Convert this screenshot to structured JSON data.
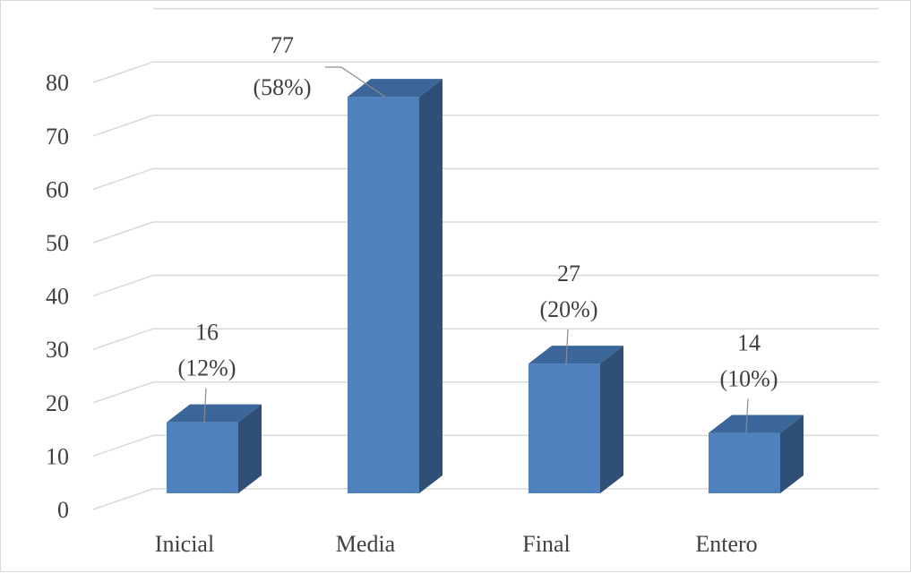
{
  "chart_data": {
    "type": "bar",
    "style": "3d-column",
    "categories": [
      "Inicial",
      "Media",
      "Final",
      "Entero"
    ],
    "values": [
      16,
      77,
      27,
      14
    ],
    "data_labels": [
      {
        "value": "16",
        "percent": "(12%)"
      },
      {
        "value": "77",
        "percent": "(58%)"
      },
      {
        "value": "27",
        "percent": "(20%)"
      },
      {
        "value": "14",
        "percent": "(10%)"
      }
    ],
    "ylim": [
      0,
      90
    ],
    "yticks": [
      "0",
      "10",
      "20",
      "30",
      "40",
      "50",
      "60",
      "70",
      "80"
    ],
    "grid": true,
    "legend": "none",
    "colors": {
      "bar_front": "#4f81bd",
      "bar_side": "#2f4f77",
      "bar_top": "#3a669a",
      "grid": "#d9d9d9",
      "text": "#404040"
    }
  }
}
